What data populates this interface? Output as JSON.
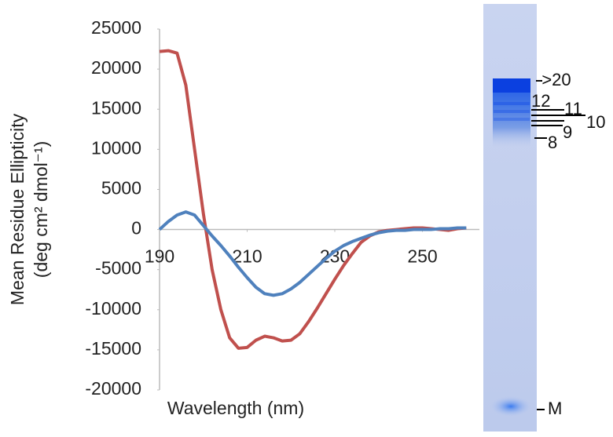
{
  "chart_data": {
    "type": "line",
    "x_label": "Wavelength (nm)",
    "y_label": [
      "Mean Residue Ellipticity",
      "(deg cm² dmol⁻¹)"
    ],
    "x": [
      190,
      192,
      194,
      196,
      198,
      200,
      202,
      204,
      206,
      208,
      210,
      212,
      214,
      216,
      218,
      220,
      222,
      224,
      226,
      228,
      230,
      232,
      234,
      236,
      238,
      240,
      242,
      244,
      246,
      248,
      250,
      252,
      254,
      256,
      258,
      260
    ],
    "series": [
      {
        "color": "#c0504d",
        "values": [
          22200,
          22300,
          22000,
          18000,
          10000,
          2000,
          -5000,
          -10000,
          -13500,
          -14800,
          -14700,
          -13800,
          -13300,
          -13500,
          -13900,
          -13800,
          -13000,
          -11500,
          -9800,
          -8000,
          -6200,
          -4500,
          -3000,
          -1600,
          -800,
          -300,
          -100,
          0,
          100,
          200,
          200,
          100,
          0,
          -100,
          100,
          200
        ]
      },
      {
        "color": "#4f81bd",
        "values": [
          0,
          1000,
          1800,
          2200,
          1800,
          500,
          -800,
          -2000,
          -3300,
          -4700,
          -6000,
          -7200,
          -8000,
          -8200,
          -8000,
          -7400,
          -6600,
          -5600,
          -4600,
          -3600,
          -2700,
          -2000,
          -1500,
          -1100,
          -700,
          -400,
          -200,
          -100,
          -100,
          0,
          0,
          0,
          100,
          100,
          200,
          200
        ]
      }
    ],
    "xlim": [
      190,
      263
    ],
    "xticks": [
      190,
      210,
      230,
      250
    ],
    "ylim": [
      -20000,
      25000
    ],
    "yticks": [
      -20000,
      -15000,
      -10000,
      -5000,
      0,
      5000,
      10000,
      15000,
      20000,
      25000
    ]
  },
  "gel": {
    "labels": [
      "->20",
      "12",
      "11",
      "10",
      "9",
      "8",
      "M"
    ]
  }
}
